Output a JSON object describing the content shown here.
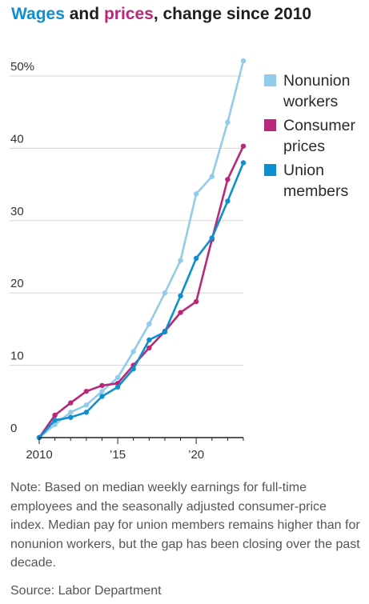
{
  "title": {
    "part1": "Wages",
    "part2": " and ",
    "part3": "prices",
    "part4": ", change since 2010"
  },
  "note": "Note: Based on median weekly earnings for full-time employees and the seasonally adjusted consumer-price index. Median pay for union members remains higher than for nonunion workers, but the gap has been closing over the past decade.",
  "source": "Source: Labor Department",
  "chart_data": {
    "type": "line",
    "title": "Wages and prices, change since 2010",
    "xlabel": "",
    "ylabel": "",
    "x": [
      2010,
      2011,
      2012,
      2013,
      2014,
      2015,
      2016,
      2017,
      2018,
      2019,
      2020,
      2021,
      2022,
      2023
    ],
    "xlim": [
      2010,
      2023
    ],
    "ylim": [
      0,
      50
    ],
    "x_ticks": [
      2010,
      2015,
      2020
    ],
    "x_tick_labels": [
      "2010",
      "’15",
      "’20"
    ],
    "y_ticks": [
      0,
      10,
      20,
      30,
      40,
      50
    ],
    "y_tick_labels": [
      "0",
      "10",
      "20",
      "30",
      "40",
      "50%"
    ],
    "grid": true,
    "legend_position": "right",
    "series": [
      {
        "name": "Nonunion workers",
        "color": "#93cbea",
        "values": [
          0,
          1.8,
          3.5,
          4.5,
          6.4,
          8.3,
          11.9,
          15.7,
          20.0,
          24.5,
          33.7,
          36.1,
          43.6,
          52.1
        ]
      },
      {
        "name": "Consumer prices",
        "color": "#b8277a",
        "values": [
          0,
          3.1,
          4.8,
          6.4,
          7.2,
          7.5,
          10.0,
          12.4,
          14.7,
          17.3,
          18.8,
          27.4,
          35.7,
          40.3
        ]
      },
      {
        "name": "Union members",
        "color": "#0e8fd0",
        "values": [
          0,
          2.4,
          2.8,
          3.5,
          5.7,
          7.0,
          9.5,
          13.5,
          14.6,
          19.6,
          24.8,
          27.6,
          32.7,
          38.0
        ]
      }
    ]
  }
}
